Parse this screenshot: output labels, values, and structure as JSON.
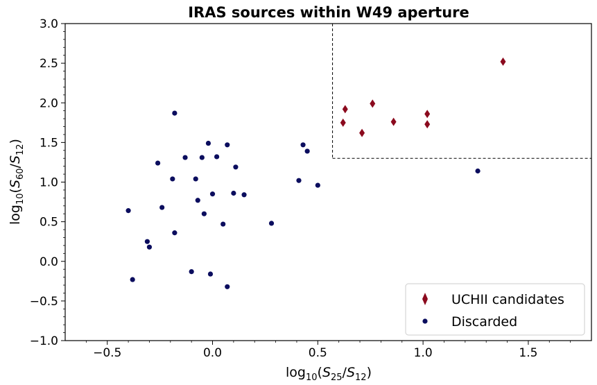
{
  "chart_data": {
    "type": "scatter",
    "title": "IRAS sources within W49 aperture",
    "xlabel": {
      "prefix": "log",
      "sub": "10",
      "open": "(",
      "num": "S",
      "num_sub": "25",
      "slash": "/",
      "den": "S",
      "den_sub": "12",
      "close": ")"
    },
    "ylabel": {
      "prefix": "log",
      "sub": "10",
      "open": "(",
      "num": "S",
      "num_sub": "60",
      "slash": "/",
      "den": "S",
      "den_sub": "12",
      "close": ")"
    },
    "xlim": [
      -0.7,
      1.8
    ],
    "ylim": [
      -1.0,
      3.0
    ],
    "xticks": [
      -0.5,
      0.0,
      0.5,
      1.0,
      1.5
    ],
    "xtick_labels": [
      "−0.5",
      "0.0",
      "0.5",
      "1.0",
      "1.5"
    ],
    "yticks": [
      -1.0,
      -0.5,
      0.0,
      0.5,
      1.0,
      1.5,
      2.0,
      2.5,
      3.0
    ],
    "ytick_labels": [
      "−1.0",
      "−0.5",
      "0.0",
      "0.5",
      "1.0",
      "1.5",
      "2.0",
      "2.5",
      "3.0"
    ],
    "grid": false,
    "legend_position": "lower-right",
    "selection_box": {
      "x_min": 0.57,
      "y_min": 1.3,
      "style": "dashed"
    },
    "series": [
      {
        "name": "UCHII candidates",
        "marker": "diamond",
        "color": "#8b0a1e",
        "points": [
          [
            0.62,
            1.75
          ],
          [
            0.63,
            1.92
          ],
          [
            0.71,
            1.62
          ],
          [
            0.76,
            1.99
          ],
          [
            0.86,
            1.76
          ],
          [
            1.02,
            1.86
          ],
          [
            1.02,
            1.73
          ],
          [
            1.38,
            2.52
          ]
        ]
      },
      {
        "name": "Discarded",
        "marker": "circle",
        "color": "#0b0d5e",
        "points": [
          [
            -0.4,
            0.64
          ],
          [
            -0.38,
            -0.23
          ],
          [
            -0.31,
            0.25
          ],
          [
            -0.3,
            0.18
          ],
          [
            -0.26,
            1.24
          ],
          [
            -0.24,
            0.68
          ],
          [
            -0.19,
            1.04
          ],
          [
            -0.18,
            1.87
          ],
          [
            -0.18,
            0.36
          ],
          [
            -0.13,
            1.31
          ],
          [
            -0.1,
            -0.13
          ],
          [
            -0.08,
            1.04
          ],
          [
            -0.07,
            0.77
          ],
          [
            -0.05,
            1.31
          ],
          [
            -0.04,
            0.6
          ],
          [
            -0.02,
            1.49
          ],
          [
            -0.01,
            -0.16
          ],
          [
            0.0,
            0.85
          ],
          [
            0.02,
            1.32
          ],
          [
            0.05,
            0.47
          ],
          [
            0.07,
            1.47
          ],
          [
            0.07,
            -0.32
          ],
          [
            0.1,
            0.86
          ],
          [
            0.11,
            1.19
          ],
          [
            0.15,
            0.84
          ],
          [
            0.28,
            0.48
          ],
          [
            0.41,
            1.02
          ],
          [
            0.43,
            1.47
          ],
          [
            0.45,
            1.39
          ],
          [
            0.5,
            0.96
          ],
          [
            1.26,
            1.14
          ]
        ]
      }
    ]
  }
}
